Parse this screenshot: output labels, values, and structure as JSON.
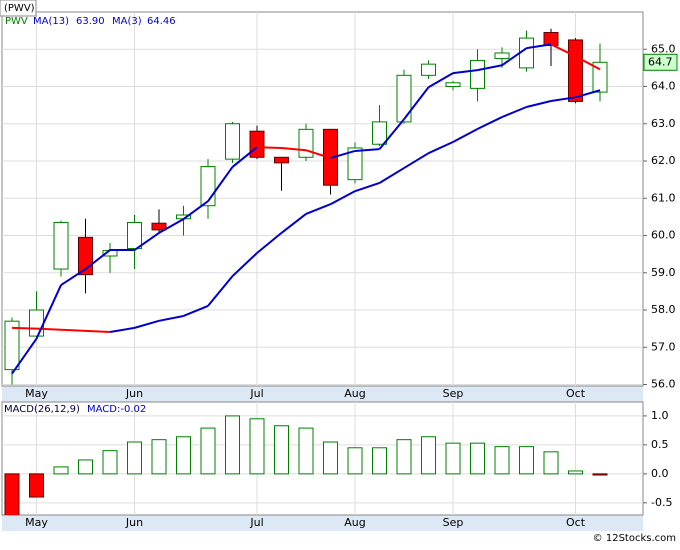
{
  "chart_data": [
    {
      "type": "candlestick",
      "title": "(PWV)",
      "categories": [
        null,
        "May",
        null,
        null,
        null,
        "Jun",
        null,
        null,
        null,
        null,
        "Jul",
        null,
        null,
        null,
        "Aug",
        null,
        null,
        null,
        "Sep",
        null,
        null,
        null,
        null,
        "Oct",
        null
      ],
      "series": [
        {
          "name": "PWV",
          "color": "#008000",
          "up_color": "#008000",
          "down_color": "#ff0000",
          "open": [
            56.4,
            57.3,
            59.1,
            59.95,
            59.45,
            59.65,
            60.33,
            60.45,
            60.8,
            62.05,
            62.8,
            62.1,
            62.1,
            62.85,
            61.5,
            62.45,
            63.05,
            64.3,
            64.0,
            63.95,
            64.75,
            64.5,
            65.45,
            65.25,
            63.85
          ],
          "high": [
            57.8,
            58.5,
            60.4,
            60.45,
            59.8,
            60.55,
            60.7,
            60.8,
            62.05,
            63.05,
            62.95,
            62.1,
            63.0,
            62.85,
            62.5,
            63.5,
            64.45,
            64.7,
            64.15,
            65.0,
            65.05,
            65.5,
            65.55,
            65.3,
            65.15
          ],
          "low": [
            56.0,
            57.2,
            58.9,
            58.45,
            59.0,
            59.1,
            60.05,
            60.0,
            60.45,
            61.95,
            62.05,
            61.2,
            62.0,
            61.1,
            61.4,
            62.4,
            63.0,
            64.2,
            63.9,
            63.6,
            64.5,
            64.4,
            64.55,
            63.55,
            63.6
          ],
          "close": [
            57.7,
            58.0,
            60.35,
            58.95,
            59.6,
            60.35,
            60.15,
            60.55,
            61.85,
            63.0,
            62.1,
            61.95,
            62.85,
            61.35,
            62.35,
            63.05,
            64.3,
            64.6,
            64.1,
            64.7,
            64.9,
            65.3,
            65.1,
            63.6,
            64.65
          ],
          "value_label": "64.7"
        },
        {
          "type": "line",
          "name": "MA(13)",
          "color": "#0000cc",
          "up_color": "#0000cc",
          "down_color": "#ff0000",
          "values": [
            57.52,
            57.5,
            57.47,
            57.44,
            57.41,
            57.52,
            57.71,
            57.84,
            58.11,
            58.91,
            59.53,
            60.07,
            60.58,
            60.84,
            61.19,
            61.41,
            61.81,
            62.21,
            62.51,
            62.86,
            63.18,
            63.45,
            63.61,
            63.71,
            63.9
          ],
          "value_label": "63.90"
        },
        {
          "type": "line",
          "name": "MA(3)",
          "color": "#0000cc",
          "up_color": "#0000cc",
          "down_color": "#ff0000",
          "values": [
            56.29,
            57.23,
            58.67,
            59.1,
            59.61,
            59.61,
            60.07,
            60.44,
            60.92,
            61.84,
            62.37,
            62.35,
            62.29,
            62.08,
            62.27,
            62.32,
            63.12,
            63.98,
            64.36,
            64.44,
            64.57,
            65.03,
            65.13,
            64.81,
            64.46
          ],
          "value_label": "64.46"
        }
      ],
      "ylim": [
        55.96,
        66.0
      ],
      "yticks": [
        {
          "value": 56,
          "label": "56.0"
        },
        {
          "value": 57,
          "label": "57.0"
        },
        {
          "value": 58,
          "label": "58.0"
        },
        {
          "value": 59,
          "label": "59.0"
        },
        {
          "value": 60,
          "label": "60.0"
        },
        {
          "value": 61,
          "label": "61.0"
        },
        {
          "value": 62,
          "label": "62.0"
        },
        {
          "value": 63,
          "label": "63.0"
        },
        {
          "value": 64,
          "label": "64.0"
        },
        {
          "value": 65,
          "label": "65.0"
        }
      ],
      "grid": true
    },
    {
      "type": "bar",
      "title": "MACD(26,12,9)",
      "value_label": "MACD:-0.02",
      "categories": [
        null,
        "May",
        null,
        null,
        null,
        "Jun",
        null,
        null,
        null,
        null,
        "Jul",
        null,
        null,
        null,
        "Aug",
        null,
        null,
        null,
        "Sep",
        null,
        null,
        null,
        null,
        "Oct",
        null
      ],
      "values": [
        -0.75,
        -0.4,
        0.12,
        0.24,
        0.4,
        0.55,
        0.59,
        0.64,
        0.79,
        1.0,
        0.95,
        0.83,
        0.79,
        0.55,
        0.45,
        0.45,
        0.59,
        0.64,
        0.53,
        0.53,
        0.47,
        0.47,
        0.38,
        0.05,
        -0.02
      ],
      "up_color": "#008000",
      "down_color": "#ff0000",
      "ylim": [
        -0.71,
        1.24
      ],
      "yticks": [
        -0.5,
        {
          "value": 0,
          "label": "0.0"
        },
        0.5,
        {
          "value": 1,
          "label": "1.0"
        }
      ],
      "grid": true
    }
  ],
  "footer": "© 12Stocks.com"
}
